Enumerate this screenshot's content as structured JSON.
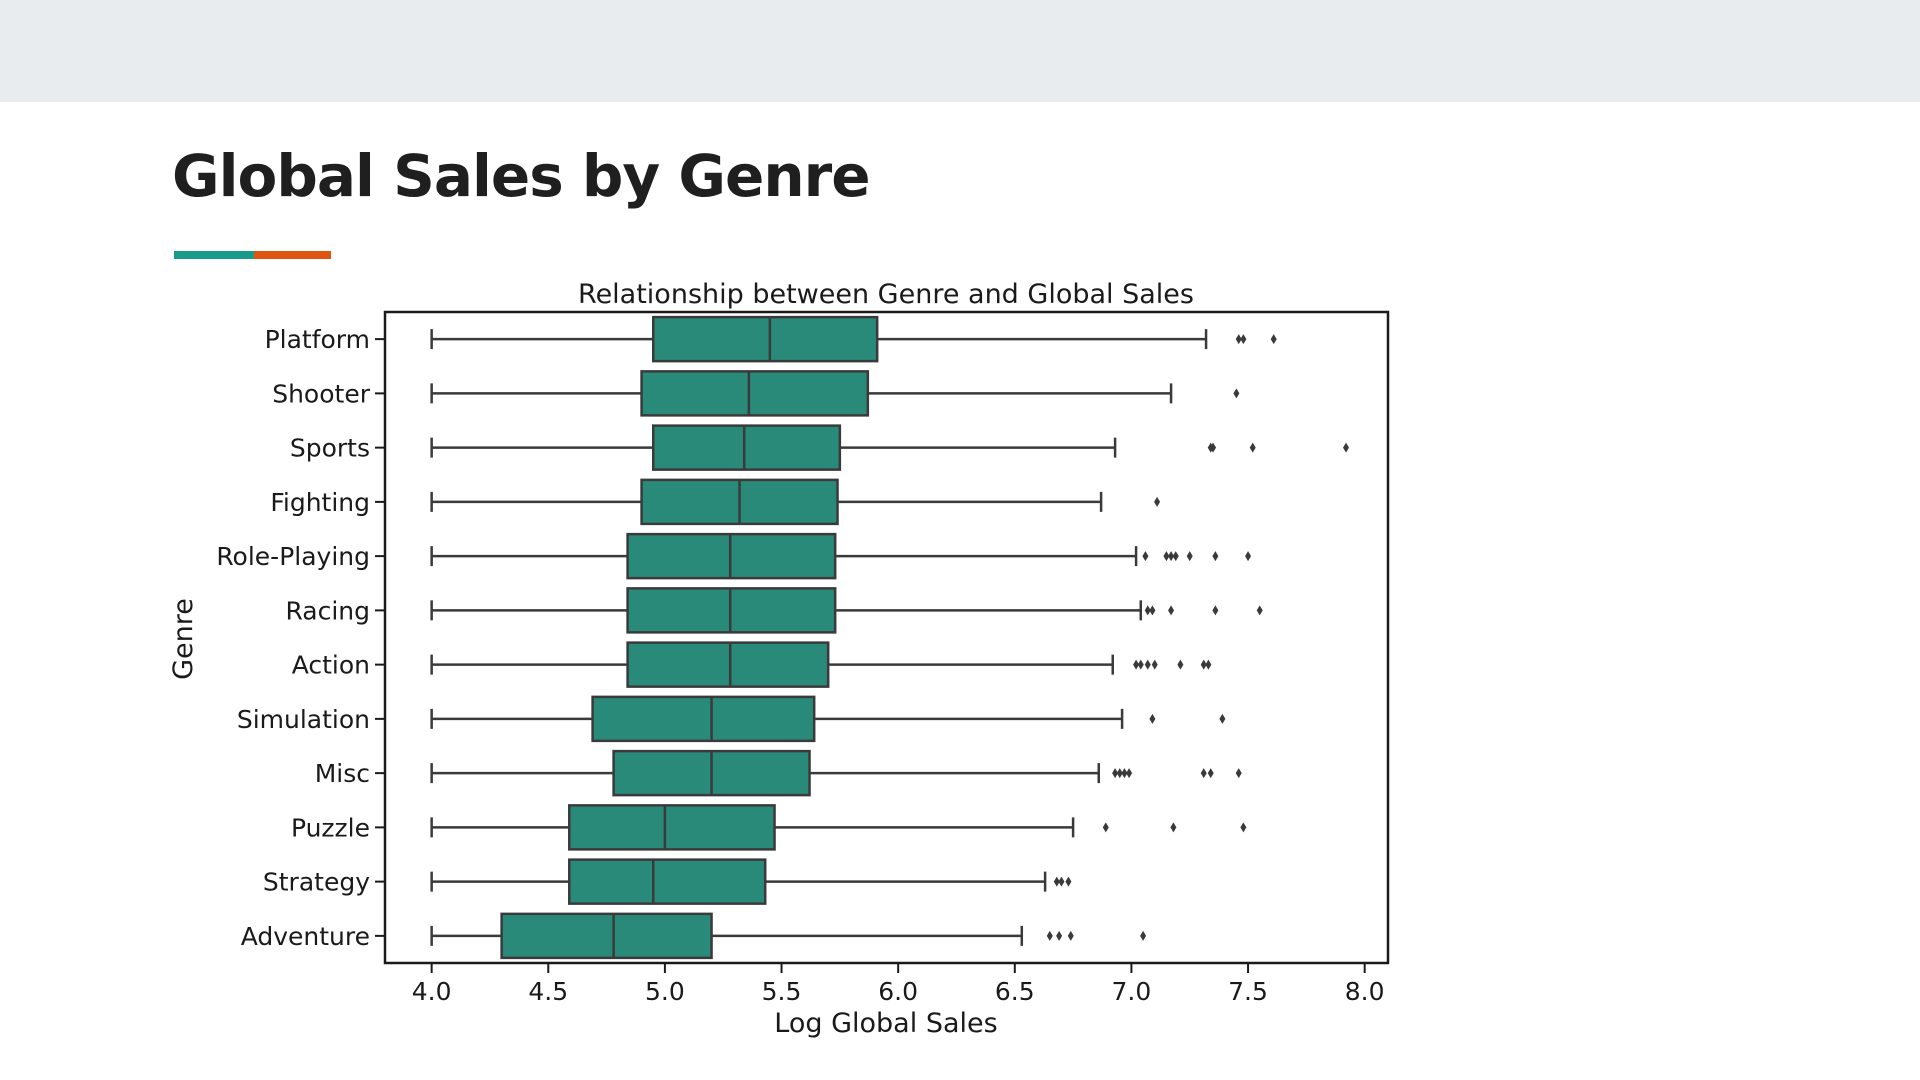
{
  "slide": {
    "title": "Global Sales by Genre",
    "accent_colors": [
      "#1a9a8a",
      "#e05512"
    ]
  },
  "chart_data": {
    "type": "boxplot",
    "orientation": "horizontal",
    "title": "Relationship between Genre and Global Sales",
    "xlabel": "Log Global Sales",
    "ylabel": "Genre",
    "xlim": [
      3.8,
      8.1
    ],
    "xticks": [
      4.0,
      4.5,
      5.0,
      5.5,
      6.0,
      6.5,
      7.0,
      7.5,
      8.0
    ],
    "xtick_labels": [
      "4.0",
      "4.5",
      "5.0",
      "5.5",
      "6.0",
      "6.5",
      "7.0",
      "7.5",
      "8.0"
    ],
    "box_color": "#2a8a7a",
    "grid": false,
    "categories": [
      "Platform",
      "Shooter",
      "Sports",
      "Fighting",
      "Role-Playing",
      "Racing",
      "Action",
      "Simulation",
      "Misc",
      "Puzzle",
      "Strategy",
      "Adventure"
    ],
    "boxes": [
      {
        "category": "Platform",
        "whisker_low": 4.0,
        "q1": 4.95,
        "median": 5.45,
        "q3": 5.91,
        "whisker_high": 7.32,
        "outliers": [
          7.46,
          7.48,
          7.61
        ]
      },
      {
        "category": "Shooter",
        "whisker_low": 4.0,
        "q1": 4.9,
        "median": 5.36,
        "q3": 5.87,
        "whisker_high": 7.17,
        "outliers": [
          7.45
        ]
      },
      {
        "category": "Sports",
        "whisker_low": 4.0,
        "q1": 4.95,
        "median": 5.34,
        "q3": 5.75,
        "whisker_high": 6.93,
        "outliers": [
          7.34,
          7.35,
          7.52,
          7.92
        ]
      },
      {
        "category": "Fighting",
        "whisker_low": 4.0,
        "q1": 4.9,
        "median": 5.32,
        "q3": 5.74,
        "whisker_high": 6.87,
        "outliers": [
          7.11
        ]
      },
      {
        "category": "Role-Playing",
        "whisker_low": 4.0,
        "q1": 4.84,
        "median": 5.28,
        "q3": 5.73,
        "whisker_high": 7.02,
        "outliers": [
          7.06,
          7.15,
          7.17,
          7.19,
          7.25,
          7.36,
          7.5
        ]
      },
      {
        "category": "Racing",
        "whisker_low": 4.0,
        "q1": 4.84,
        "median": 5.28,
        "q3": 5.73,
        "whisker_high": 7.04,
        "outliers": [
          7.07,
          7.09,
          7.17,
          7.36,
          7.55
        ]
      },
      {
        "category": "Action",
        "whisker_low": 4.0,
        "q1": 4.84,
        "median": 5.28,
        "q3": 5.7,
        "whisker_high": 6.92,
        "outliers": [
          7.02,
          7.04,
          7.07,
          7.1,
          7.21,
          7.31,
          7.33
        ]
      },
      {
        "category": "Simulation",
        "whisker_low": 4.0,
        "q1": 4.69,
        "median": 5.2,
        "q3": 5.64,
        "whisker_high": 6.96,
        "outliers": [
          7.09,
          7.39
        ]
      },
      {
        "category": "Misc",
        "whisker_low": 4.0,
        "q1": 4.78,
        "median": 5.2,
        "q3": 5.62,
        "whisker_high": 6.86,
        "outliers": [
          6.93,
          6.95,
          6.97,
          6.99,
          7.31,
          7.34,
          7.46
        ]
      },
      {
        "category": "Puzzle",
        "whisker_low": 4.0,
        "q1": 4.59,
        "median": 5.0,
        "q3": 5.47,
        "whisker_high": 6.75,
        "outliers": [
          6.89,
          7.18,
          7.48
        ]
      },
      {
        "category": "Strategy",
        "whisker_low": 4.0,
        "q1": 4.59,
        "median": 4.95,
        "q3": 5.43,
        "whisker_high": 6.63,
        "outliers": [
          6.68,
          6.7,
          6.73
        ]
      },
      {
        "category": "Adventure",
        "whisker_low": 4.0,
        "q1": 4.3,
        "median": 4.78,
        "q3": 5.2,
        "whisker_high": 6.53,
        "outliers": [
          6.65,
          6.69,
          6.74,
          7.05
        ]
      }
    ]
  }
}
